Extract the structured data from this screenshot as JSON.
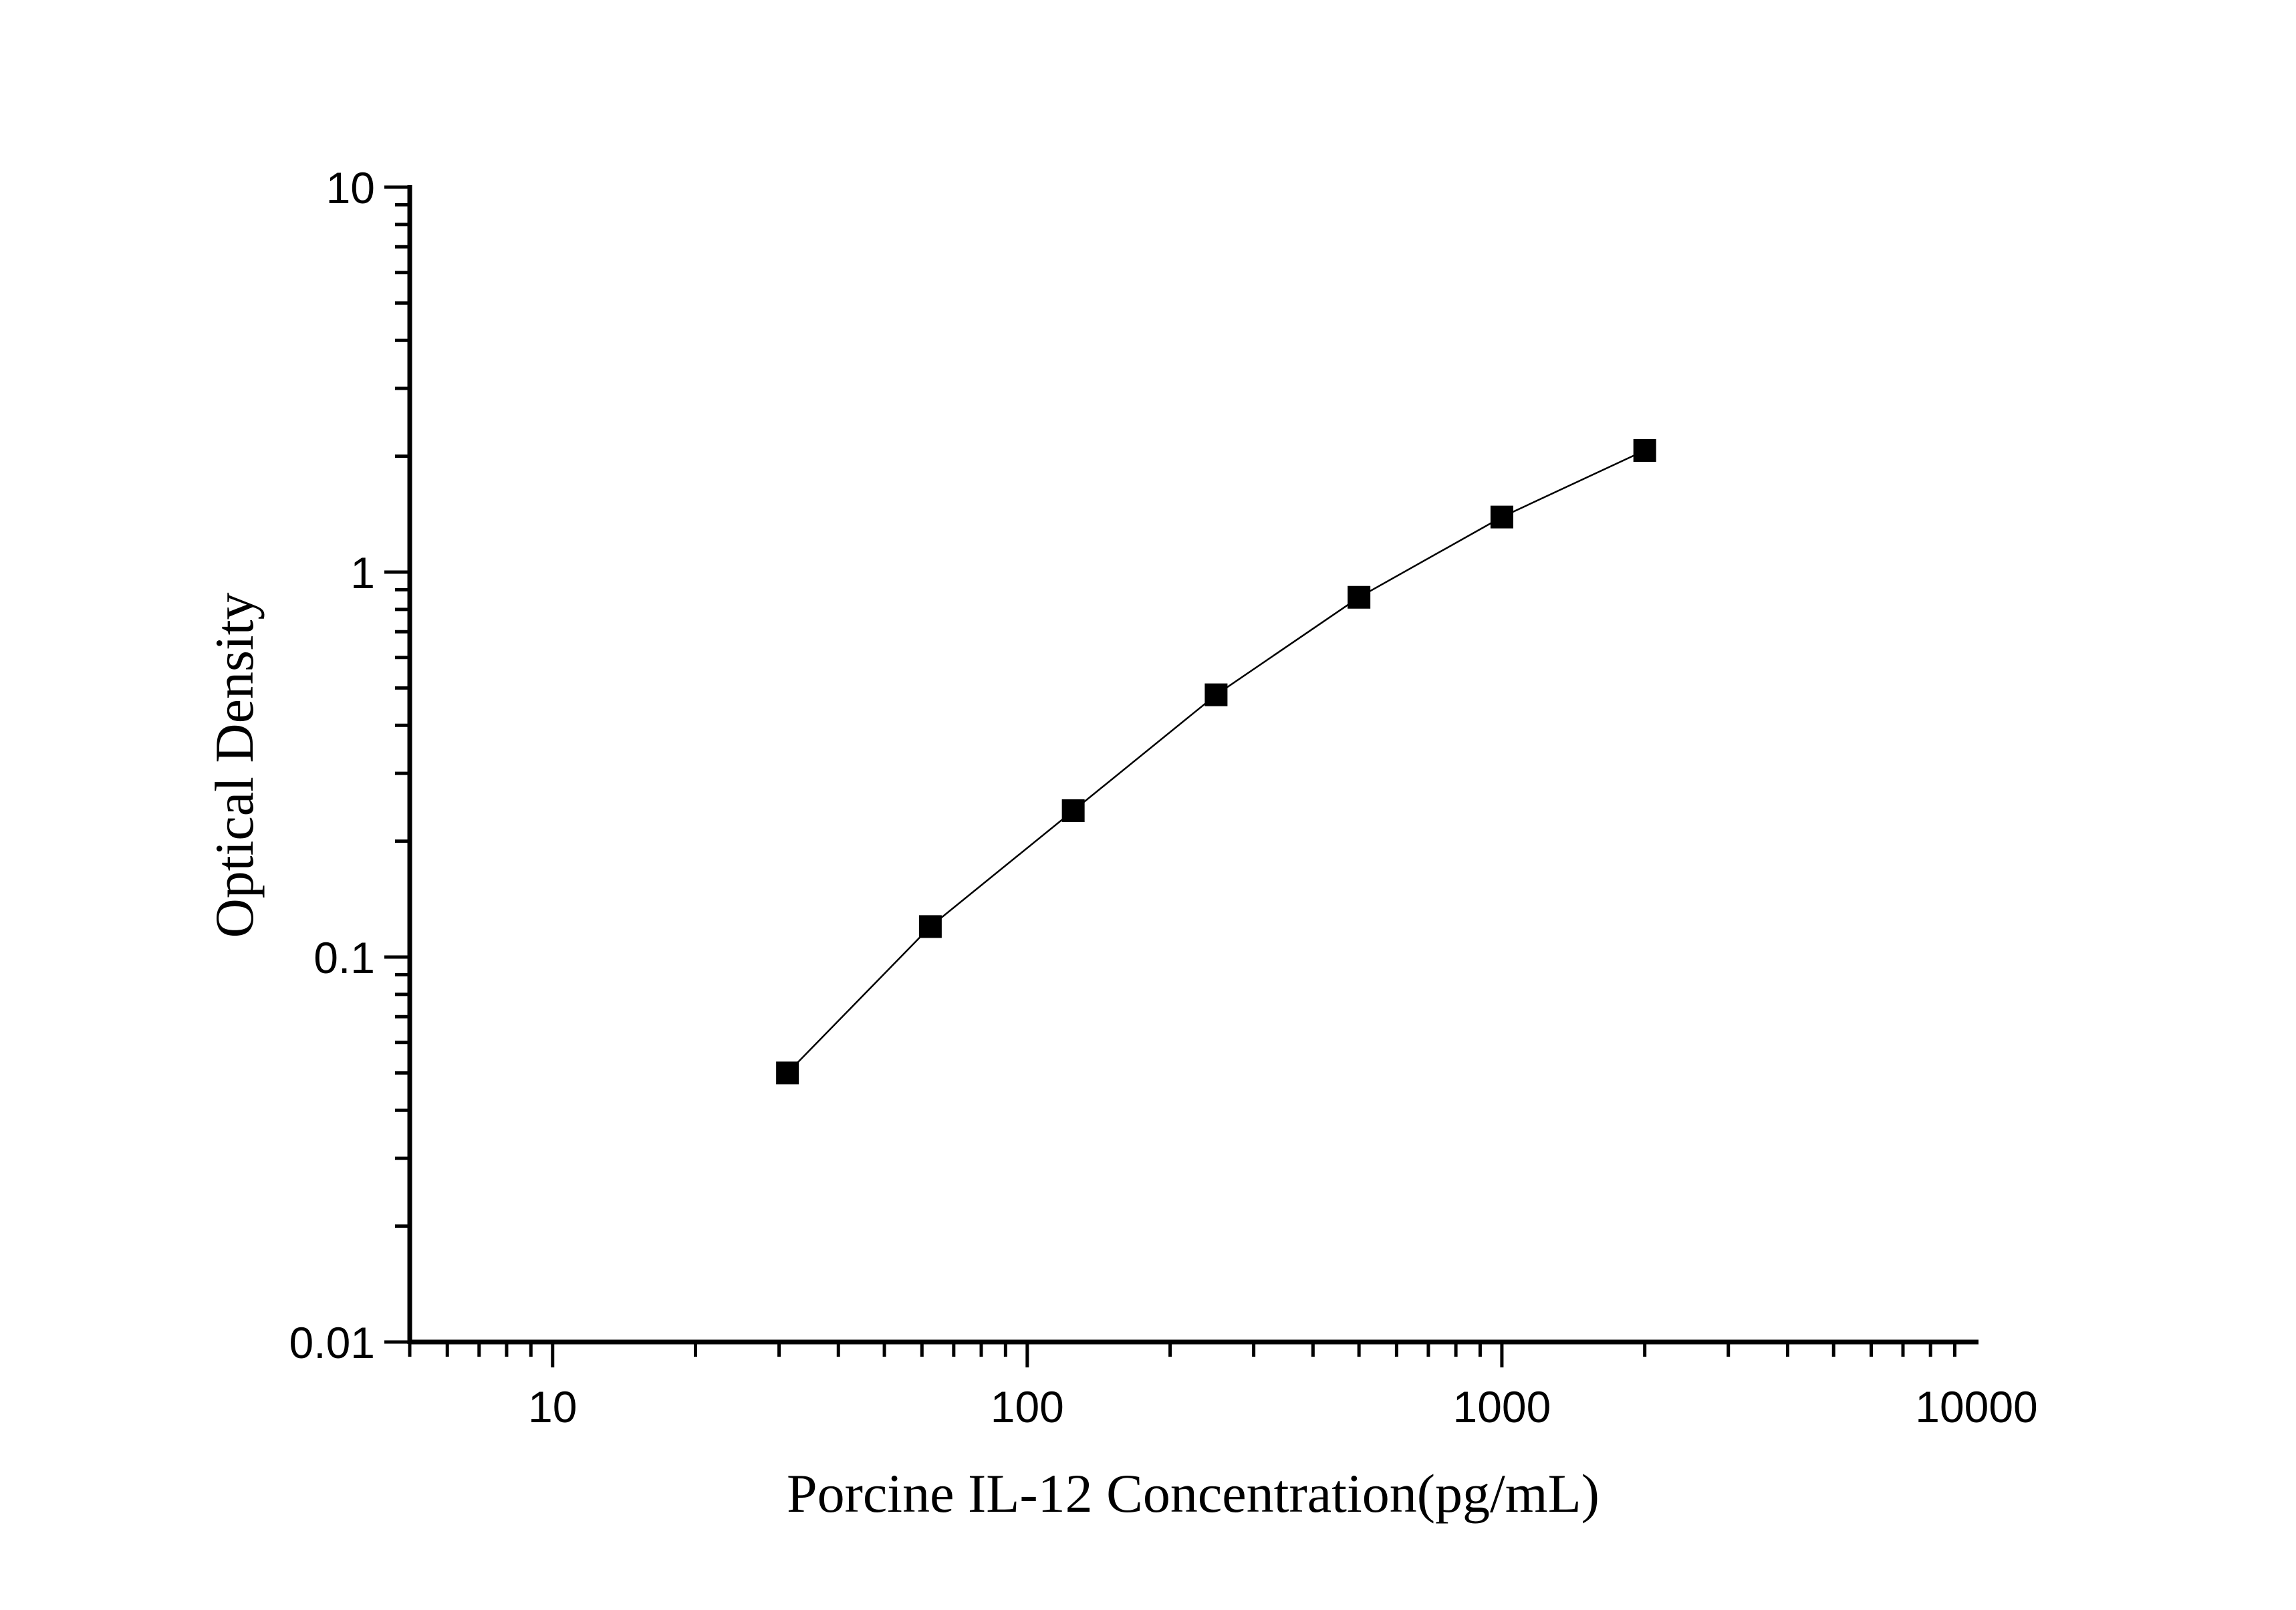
{
  "chart_data": {
    "type": "line",
    "title": "",
    "xlabel": "Porcine IL-12 Concentration(pg/mL)",
    "ylabel": "Optical Density",
    "xscale": "log",
    "yscale": "log",
    "xlim": [
      5,
      10000
    ],
    "ylim": [
      0.01,
      10
    ],
    "x_ticks": [
      "10",
      "100",
      "1000",
      "10000"
    ],
    "y_ticks": [
      "0.01",
      "0.1",
      "1",
      "10"
    ],
    "grid": false,
    "marker": "square",
    "color": "#000000",
    "series": [
      {
        "x": [
          31.25,
          62.5,
          125,
          250,
          500,
          1000,
          2000
        ],
        "y": [
          0.05,
          0.12,
          0.24,
          0.48,
          0.86,
          1.39,
          2.07
        ]
      }
    ]
  }
}
